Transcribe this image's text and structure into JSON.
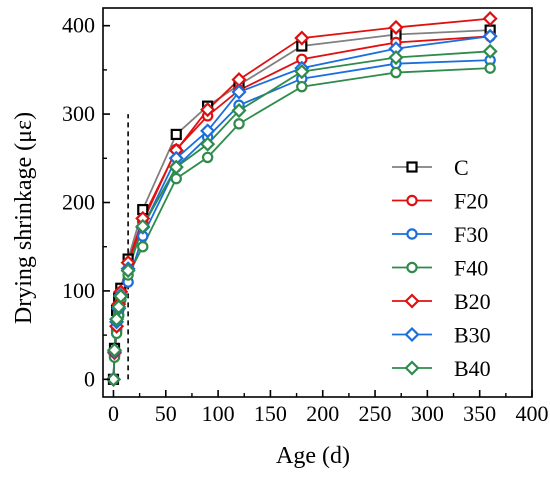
{
  "chart_data": {
    "type": "line",
    "title": "",
    "xlabel": "Age (d)",
    "ylabel": "Drying shrinkage (με)",
    "xlim": [
      -10,
      400
    ],
    "ylim": [
      -20,
      420
    ],
    "xticks": [
      0,
      50,
      100,
      150,
      200,
      250,
      300,
      350,
      400
    ],
    "yticks": [
      0,
      100,
      200,
      300,
      400
    ],
    "xtick_labels": [
      "0",
      "50",
      "100",
      "150",
      "200",
      "250",
      "300",
      "350",
      "400"
    ],
    "ytick_labels": [
      "0",
      "100",
      "200",
      "300",
      "400"
    ],
    "grid": false,
    "legend_position": "center-right",
    "x": [
      0,
      1,
      3,
      5,
      7,
      14,
      28,
      60,
      90,
      120,
      180,
      270,
      360
    ],
    "vertical_line": {
      "x": 14,
      "y_range": [
        0,
        300
      ],
      "style": "dashed"
    },
    "series": [
      {
        "name": "C",
        "marker": "square",
        "color": "#000000",
        "line_color": "#808080",
        "values": [
          0,
          35,
          78,
          92,
          103,
          136,
          192,
          277,
          309,
          333,
          377,
          390,
          395
        ]
      },
      {
        "name": "F20",
        "marker": "circle",
        "color": "#e01010",
        "line_color": "#e01010",
        "values": [
          0,
          28,
          57,
          78,
          95,
          125,
          178,
          260,
          298,
          327,
          362,
          381,
          388
        ]
      },
      {
        "name": "F30",
        "marker": "circle",
        "color": "#1a6fdc",
        "line_color": "#1a6fdc",
        "values": [
          0,
          27,
          55,
          73,
          90,
          110,
          162,
          240,
          274,
          310,
          340,
          357,
          361
        ]
      },
      {
        "name": "F40",
        "marker": "circle",
        "color": "#2e8b4a",
        "line_color": "#2e8b4a",
        "values": [
          0,
          25,
          52,
          72,
          90,
          118,
          150,
          227,
          251,
          289,
          331,
          347,
          352
        ]
      },
      {
        "name": "B20",
        "marker": "diamond",
        "color": "#e01010",
        "line_color": "#e01010",
        "values": [
          0,
          30,
          60,
          85,
          99,
          132,
          182,
          259,
          305,
          339,
          386,
          398,
          408
        ]
      },
      {
        "name": "B30",
        "marker": "diamond",
        "color": "#1a6fdc",
        "line_color": "#1a6fdc",
        "values": [
          0,
          32,
          65,
          80,
          95,
          125,
          172,
          250,
          281,
          325,
          352,
          374,
          388
        ]
      },
      {
        "name": "B40",
        "marker": "diamond",
        "color": "#2e8b4a",
        "line_color": "#2e8b4a",
        "values": [
          0,
          33,
          68,
          82,
          94,
          123,
          173,
          240,
          266,
          304,
          348,
          364,
          371
        ]
      }
    ]
  }
}
